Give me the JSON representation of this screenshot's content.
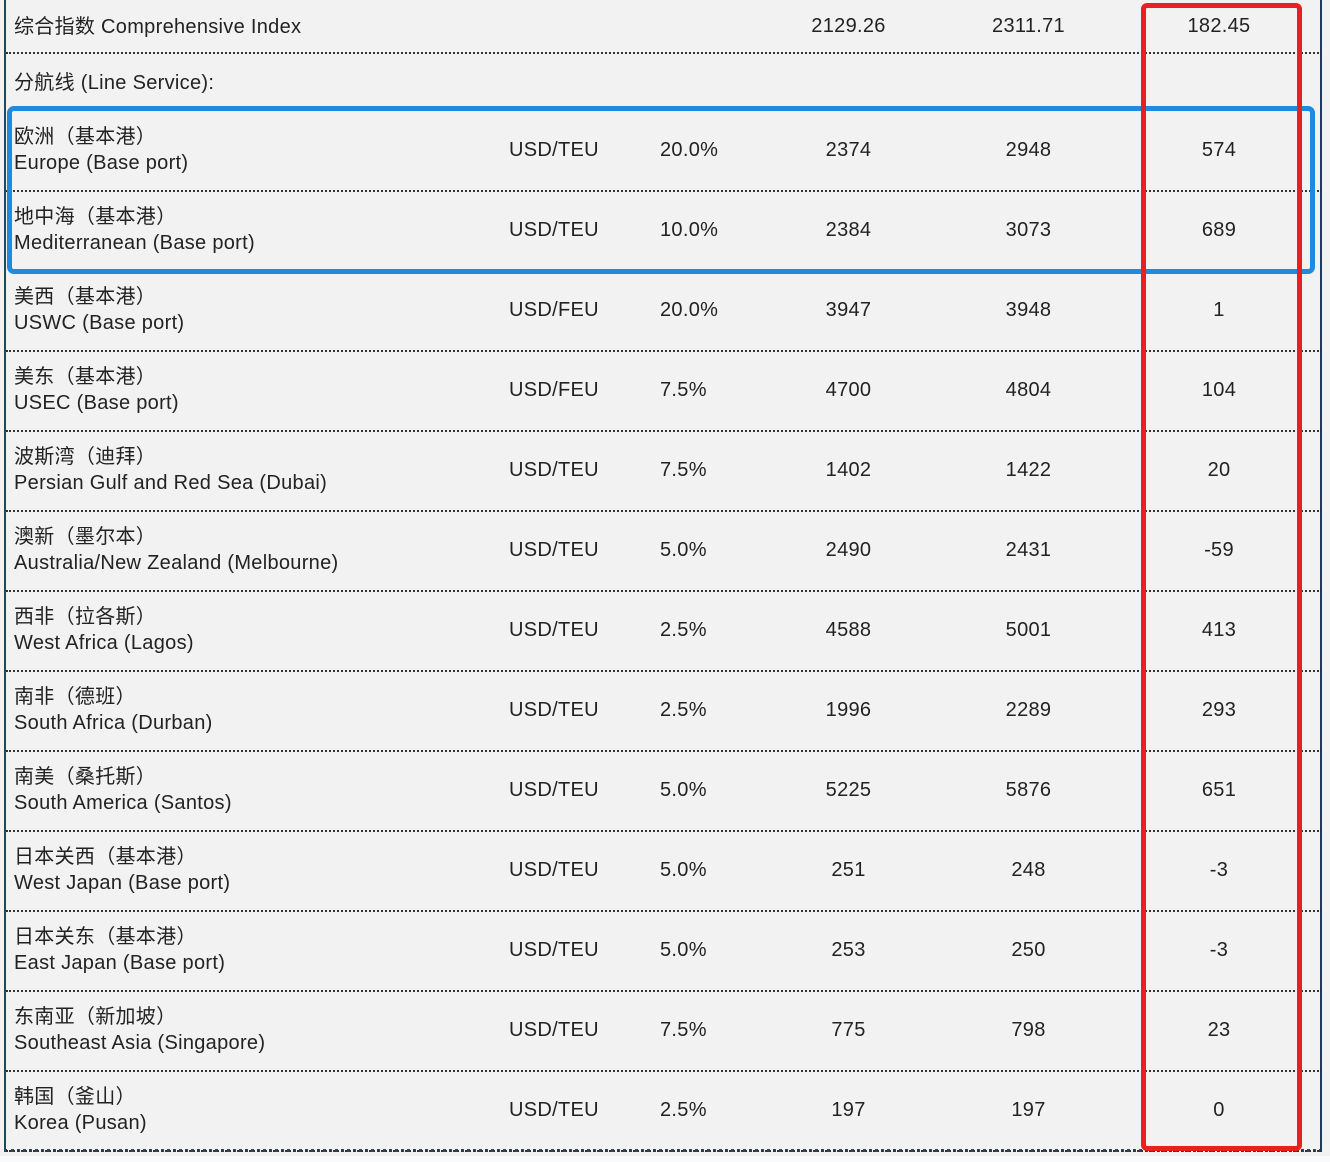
{
  "index_row": {
    "label": "综合指数 Comprehensive Index",
    "previous": "2129.26",
    "current": "2311.71",
    "change": "182.45"
  },
  "section_label": "分航线 (Line Service):",
  "routes": [
    {
      "cn": "欧洲（基本港）",
      "en": "Europe (Base port)",
      "unit": "USD/TEU",
      "weight": "20.0%",
      "previous": "2374",
      "current": "2948",
      "change": "574"
    },
    {
      "cn": "地中海（基本港）",
      "en": "Mediterranean (Base port)",
      "unit": "USD/TEU",
      "weight": "10.0%",
      "previous": "2384",
      "current": "3073",
      "change": "689"
    },
    {
      "cn": "美西（基本港）",
      "en": "USWC (Base port)",
      "unit": "USD/FEU",
      "weight": "20.0%",
      "previous": "3947",
      "current": "3948",
      "change": "1"
    },
    {
      "cn": "美东（基本港）",
      "en": "USEC (Base port)",
      "unit": "USD/FEU",
      "weight": "7.5%",
      "previous": "4700",
      "current": "4804",
      "change": "104"
    },
    {
      "cn": "波斯湾（迪拜）",
      "en": "Persian Gulf and Red Sea (Dubai)",
      "unit": "USD/TEU",
      "weight": "7.5%",
      "previous": "1402",
      "current": "1422",
      "change": "20"
    },
    {
      "cn": "澳新（墨尔本）",
      "en": "Australia/New Zealand (Melbourne)",
      "unit": "USD/TEU",
      "weight": "5.0%",
      "previous": "2490",
      "current": "2431",
      "change": "-59"
    },
    {
      "cn": "西非（拉各斯）",
      "en": "West Africa (Lagos)",
      "unit": "USD/TEU",
      "weight": "2.5%",
      "previous": "4588",
      "current": "5001",
      "change": "413"
    },
    {
      "cn": "南非（德班）",
      "en": "South Africa (Durban)",
      "unit": "USD/TEU",
      "weight": "2.5%",
      "previous": "1996",
      "current": "2289",
      "change": "293"
    },
    {
      "cn": "南美（桑托斯）",
      "en": "South America (Santos)",
      "unit": "USD/TEU",
      "weight": "5.0%",
      "previous": "5225",
      "current": "5876",
      "change": "651"
    },
    {
      "cn": "日本关西（基本港）",
      "en": "West Japan (Base port)",
      "unit": "USD/TEU",
      "weight": "5.0%",
      "previous": "251",
      "current": "248",
      "change": "-3"
    },
    {
      "cn": "日本关东（基本港）",
      "en": "East Japan (Base port)",
      "unit": "USD/TEU",
      "weight": "5.0%",
      "previous": "253",
      "current": "250",
      "change": "-3"
    },
    {
      "cn": "东南亚（新加坡）",
      "en": "Southeast Asia (Singapore)",
      "unit": "USD/TEU",
      "weight": "7.5%",
      "previous": "775",
      "current": "798",
      "change": "23"
    },
    {
      "cn": "韩国（釜山）",
      "en": "Korea (Pusan)",
      "unit": "USD/TEU",
      "weight": "2.5%",
      "previous": "197",
      "current": "197",
      "change": "0"
    }
  ],
  "highlights": {
    "change_column_color": "#e8211e",
    "europe_med_rows_color": "#1f8be0"
  }
}
